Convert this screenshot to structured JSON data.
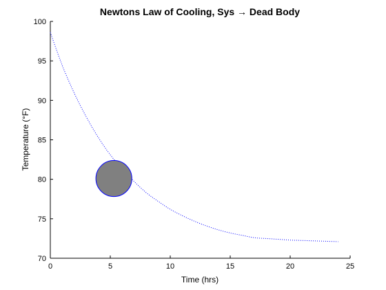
{
  "chart_data": {
    "type": "line",
    "title": "Newtons Law of Cooling, Sys → Dead Body",
    "xlabel": "Time (hrs)",
    "ylabel": "Temperature (°F)",
    "xlim": [
      0,
      25
    ],
    "ylim": [
      70,
      100
    ],
    "xticks": [
      0,
      5,
      10,
      15,
      20,
      25
    ],
    "yticks": [
      70,
      75,
      80,
      85,
      90,
      95,
      100
    ],
    "grid": false,
    "legend": "none",
    "series": [
      {
        "style": "dotted",
        "color": "#0000ff",
        "x": [
          0,
          1,
          2,
          3,
          4,
          5,
          6,
          7,
          8,
          9,
          10,
          11,
          12,
          13,
          14,
          15,
          16,
          17,
          18,
          19,
          20,
          21,
          22,
          23,
          24
        ],
        "y": [
          98.6,
          94.4,
          90.9,
          87.9,
          85.3,
          83.1,
          81.3,
          79.7,
          78.3,
          77.2,
          76.2,
          75.4,
          74.7,
          74.1,
          73.6,
          73.2,
          72.9,
          72.6,
          72.5,
          72.4,
          72.3,
          72.25,
          72.2,
          72.15,
          72.1
        ]
      }
    ],
    "marker": {
      "shape": "circle",
      "x": 5.3,
      "y": 80.1,
      "fill": "#808080",
      "edge": "#0000ff"
    }
  }
}
